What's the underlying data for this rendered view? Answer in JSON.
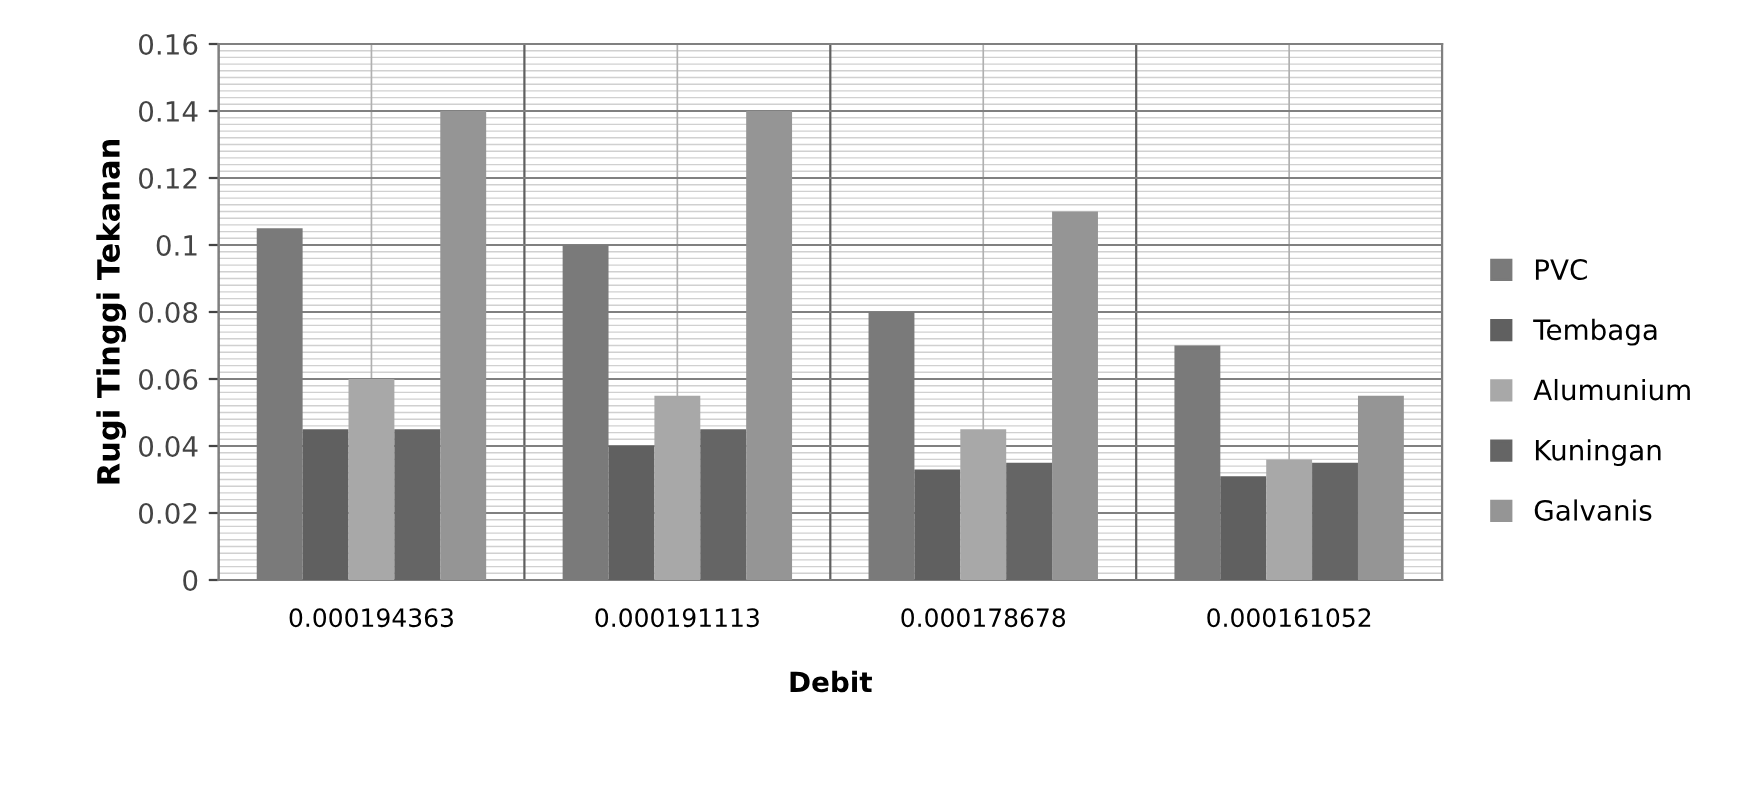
{
  "chart_data": {
    "type": "bar",
    "xlabel": "Debit",
    "ylabel": "Rugi Tinggi Tekanan",
    "categories": [
      "0.000194363",
      "0.000191113",
      "0.000178678",
      "0.000161052"
    ],
    "series": [
      {
        "name": "PVC",
        "color": "#7a7a7a",
        "values": [
          0.105,
          0.1,
          0.08,
          0.07
        ]
      },
      {
        "name": "Tembaga",
        "color": "#606060",
        "values": [
          0.045,
          0.04,
          0.033,
          0.031
        ]
      },
      {
        "name": "Alumunium",
        "color": "#a8a8a8",
        "values": [
          0.06,
          0.055,
          0.045,
          0.036
        ]
      },
      {
        "name": "Kuningan",
        "color": "#656565",
        "values": [
          0.045,
          0.045,
          0.035,
          0.035
        ]
      },
      {
        "name": "Galvanis",
        "color": "#959595",
        "values": [
          0.14,
          0.14,
          0.11,
          0.055
        ]
      }
    ],
    "ylim": [
      0,
      0.16
    ],
    "yticks": [
      0,
      0.02,
      0.04,
      0.06,
      0.08,
      {
        "value": 0.1,
        "label": "0.1"
      },
      0.12,
      0.14,
      0.16
    ],
    "grid": true,
    "legend": "right"
  }
}
